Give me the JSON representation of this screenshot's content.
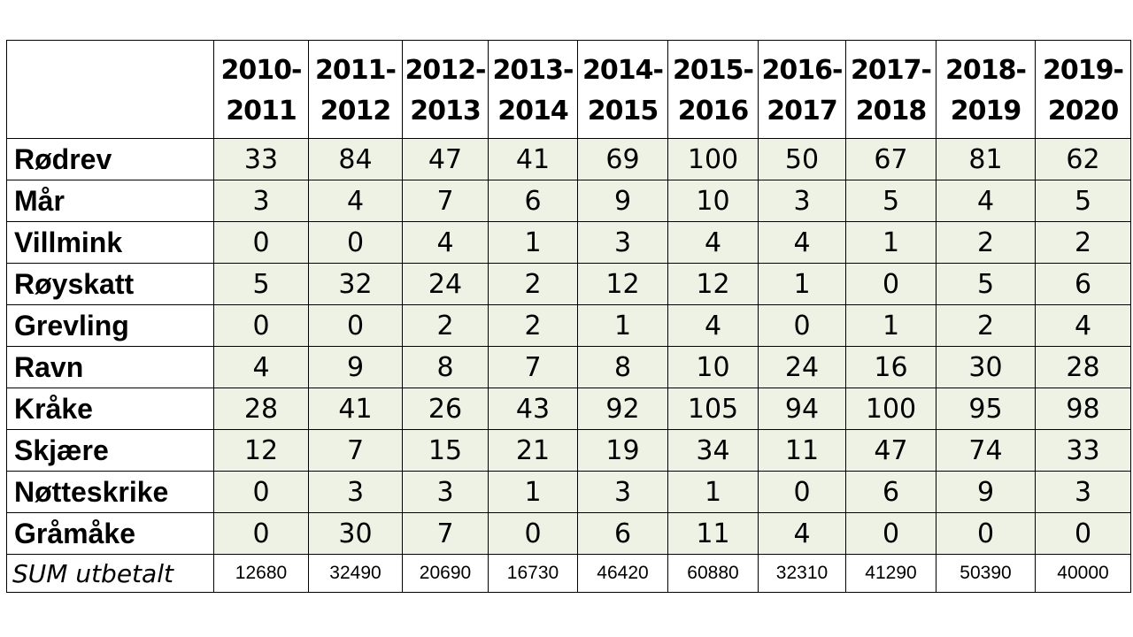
{
  "table": {
    "header": [
      [
        "2010-",
        "2011"
      ],
      [
        "2011-",
        "2012"
      ],
      [
        "2012-",
        "2013"
      ],
      [
        "2013-",
        "2014"
      ],
      [
        "2014-",
        "2015"
      ],
      [
        "2015-",
        "2016"
      ],
      [
        "2016-",
        "2017"
      ],
      [
        "2017-",
        "2018"
      ],
      [
        "2018-",
        "2019"
      ],
      [
        "2019-",
        "2020"
      ]
    ],
    "rows": [
      {
        "label": "Rødrev",
        "values": [
          33,
          84,
          47,
          41,
          69,
          100,
          50,
          67,
          81,
          62
        ]
      },
      {
        "label": "Mår",
        "values": [
          3,
          4,
          7,
          6,
          9,
          10,
          3,
          5,
          4,
          5
        ]
      },
      {
        "label": "Villmink",
        "values": [
          0,
          0,
          4,
          1,
          3,
          4,
          4,
          1,
          2,
          2
        ]
      },
      {
        "label": "Røyskatt",
        "values": [
          5,
          32,
          24,
          2,
          12,
          12,
          1,
          0,
          5,
          6
        ]
      },
      {
        "label": "Grevling",
        "values": [
          0,
          0,
          2,
          2,
          1,
          4,
          0,
          1,
          2,
          4
        ]
      },
      {
        "label": "Ravn",
        "values": [
          4,
          9,
          8,
          7,
          8,
          10,
          24,
          16,
          30,
          28
        ]
      },
      {
        "label": "Kråke",
        "values": [
          28,
          41,
          26,
          43,
          92,
          105,
          94,
          100,
          95,
          98
        ]
      },
      {
        "label": "Skjære",
        "values": [
          12,
          7,
          15,
          21,
          19,
          34,
          11,
          47,
          74,
          33
        ]
      },
      {
        "label": "Nøtteskrike",
        "values": [
          0,
          3,
          3,
          1,
          3,
          1,
          0,
          6,
          9,
          3
        ]
      },
      {
        "label": "Gråmåke",
        "values": [
          0,
          30,
          7,
          0,
          6,
          11,
          4,
          0,
          0,
          0
        ]
      }
    ],
    "sum": {
      "label": "SUM utbetalt",
      "values": [
        12680,
        32490,
        20690,
        16730,
        46420,
        60880,
        32310,
        41290,
        50390,
        40000
      ]
    }
  }
}
